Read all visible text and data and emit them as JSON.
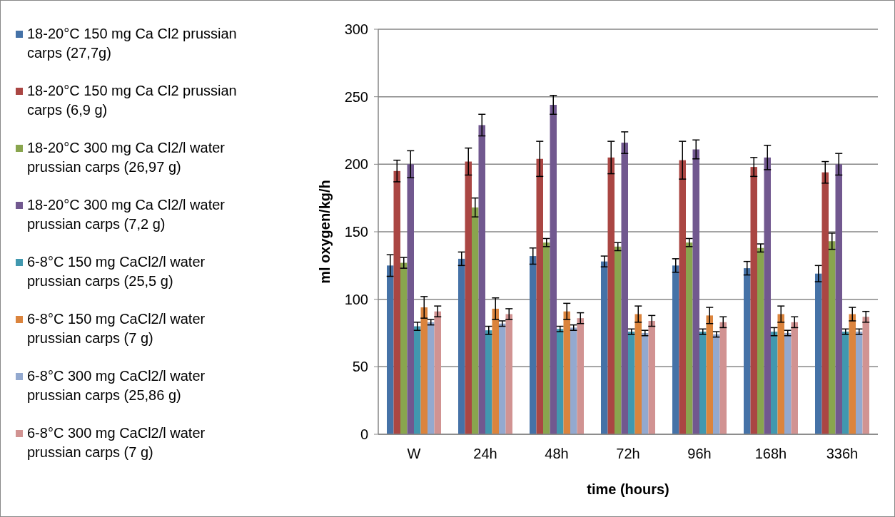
{
  "chart_data": {
    "type": "bar",
    "xlabel": "time (hours)",
    "ylabel": "ml oxygen/kg/h",
    "categories": [
      "W",
      "24h",
      "48h",
      "72h",
      "96h",
      "168h",
      "336h"
    ],
    "ylim": [
      0,
      300
    ],
    "yticks": [
      0,
      50,
      100,
      150,
      200,
      250,
      300
    ],
    "grid": "y",
    "legend": "left",
    "series": [
      {
        "name": "18-20°C 150 mg Ca Cl2 prussian carps (27,7g)",
        "color": "#4572a7",
        "values": [
          125,
          130,
          132,
          128,
          125,
          123,
          119
        ],
        "errors": [
          8,
          5,
          6,
          4,
          5,
          5,
          6
        ]
      },
      {
        "name": "18-20°C 150 mg Ca Cl2 prussian carps (6,9 g)",
        "color": "#aa4643",
        "values": [
          195,
          202,
          204,
          205,
          203,
          198,
          194
        ],
        "errors": [
          8,
          10,
          13,
          12,
          14,
          7,
          8
        ]
      },
      {
        "name": "18-20°C 300 mg Ca Cl2/l water prussian carps (26,97 g)",
        "color": "#89a54e",
        "values": [
          127,
          168,
          142,
          139,
          142,
          138,
          143
        ],
        "errors": [
          4,
          7,
          3,
          3,
          3,
          3,
          6
        ]
      },
      {
        "name": "18-20°C 300 mg Ca Cl2/l water prussian carps (7,2 g)",
        "color": "#71588f",
        "values": [
          200,
          229,
          244,
          216,
          211,
          205,
          200
        ],
        "errors": [
          10,
          8,
          7,
          8,
          7,
          9,
          8
        ]
      },
      {
        "name": "6-8°C 150 mg CaCl2/l water prussian carps (25,5 g)",
        "color": "#4198af",
        "values": [
          80,
          77,
          78,
          76,
          76,
          76,
          76
        ],
        "errors": [
          3,
          3,
          2,
          2,
          2,
          3,
          2
        ]
      },
      {
        "name": "6-8°C 150 mg CaCl2/l water prussian carps (7 g)",
        "color": "#db843d",
        "values": [
          94,
          93,
          91,
          89,
          88,
          89,
          89
        ],
        "errors": [
          8,
          8,
          6,
          6,
          6,
          6,
          5
        ]
      },
      {
        "name": "6-8°C 300 mg CaCl2/l water prussian carps (25,86 g)",
        "color": "#93a9cf",
        "values": [
          83,
          82,
          79,
          75,
          74,
          75,
          76
        ],
        "errors": [
          2,
          2,
          2,
          2,
          2,
          2,
          2
        ]
      },
      {
        "name": "6-8°C 300 mg CaCl2/l water prussian carps (7 g)",
        "color": "#d19392",
        "values": [
          91,
          89,
          86,
          84,
          83,
          83,
          87
        ],
        "errors": [
          4,
          4,
          4,
          4,
          4,
          4,
          4
        ]
      }
    ]
  }
}
